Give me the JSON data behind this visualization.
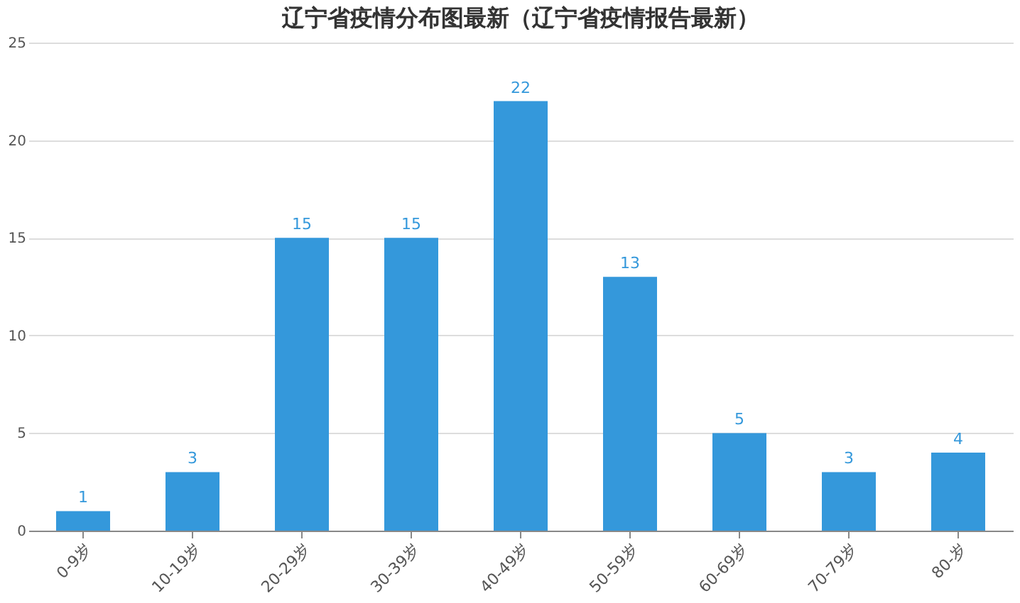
{
  "chart_data": {
    "type": "bar",
    "title": "辽宁省疫情分布图最新（辽宁省疫情报告最新）",
    "categories": [
      "0-9岁",
      "10-19岁",
      "20-29岁",
      "30-39岁",
      "40-49岁",
      "50-59岁",
      "60-69岁",
      "70-79岁",
      "80-岁"
    ],
    "values": [
      1,
      3,
      15,
      15,
      22,
      13,
      5,
      3,
      4
    ],
    "color": "#3498db",
    "ylim": [
      0,
      25
    ],
    "yticks": [
      0,
      5,
      10,
      15,
      20,
      25
    ],
    "grid": "y",
    "data_labels": true
  }
}
